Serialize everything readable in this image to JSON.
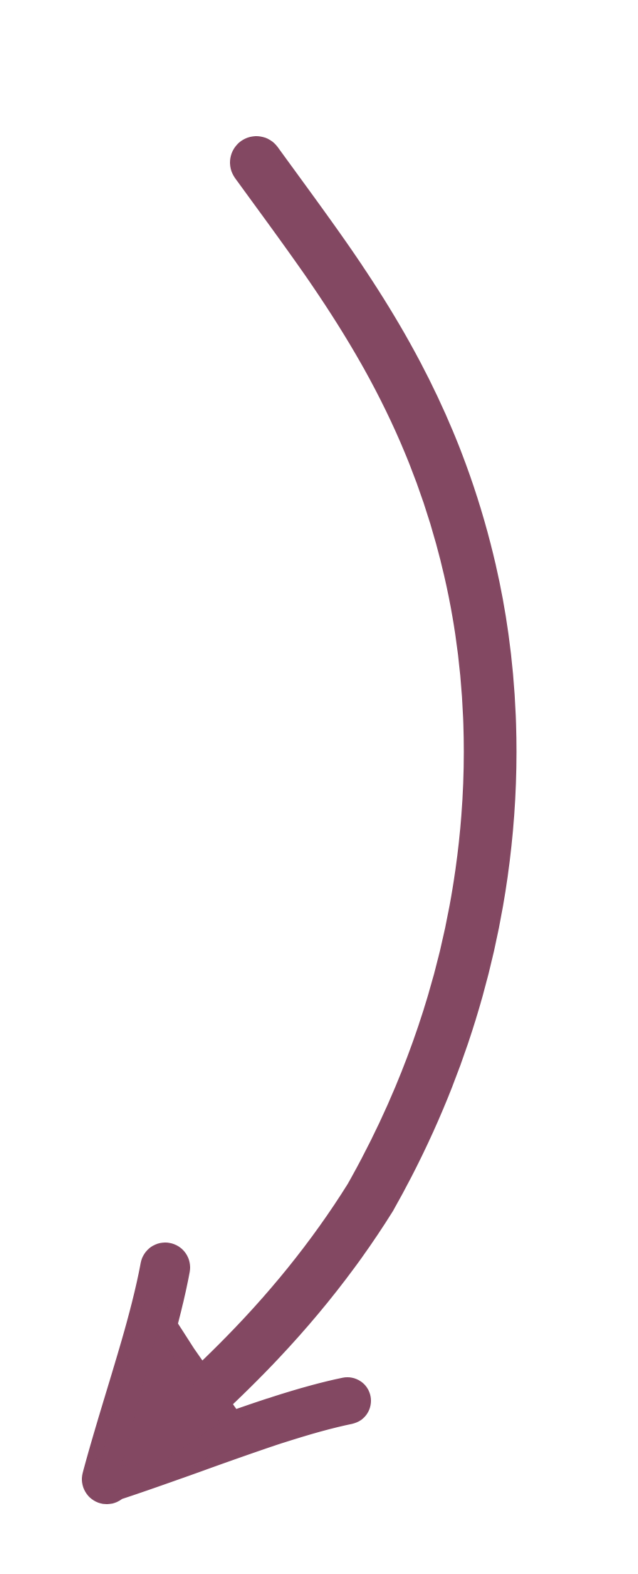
{
  "illustration": {
    "icon": "curved-arrow-down-left-icon",
    "color": "#834862",
    "background": "#ffffff"
  }
}
